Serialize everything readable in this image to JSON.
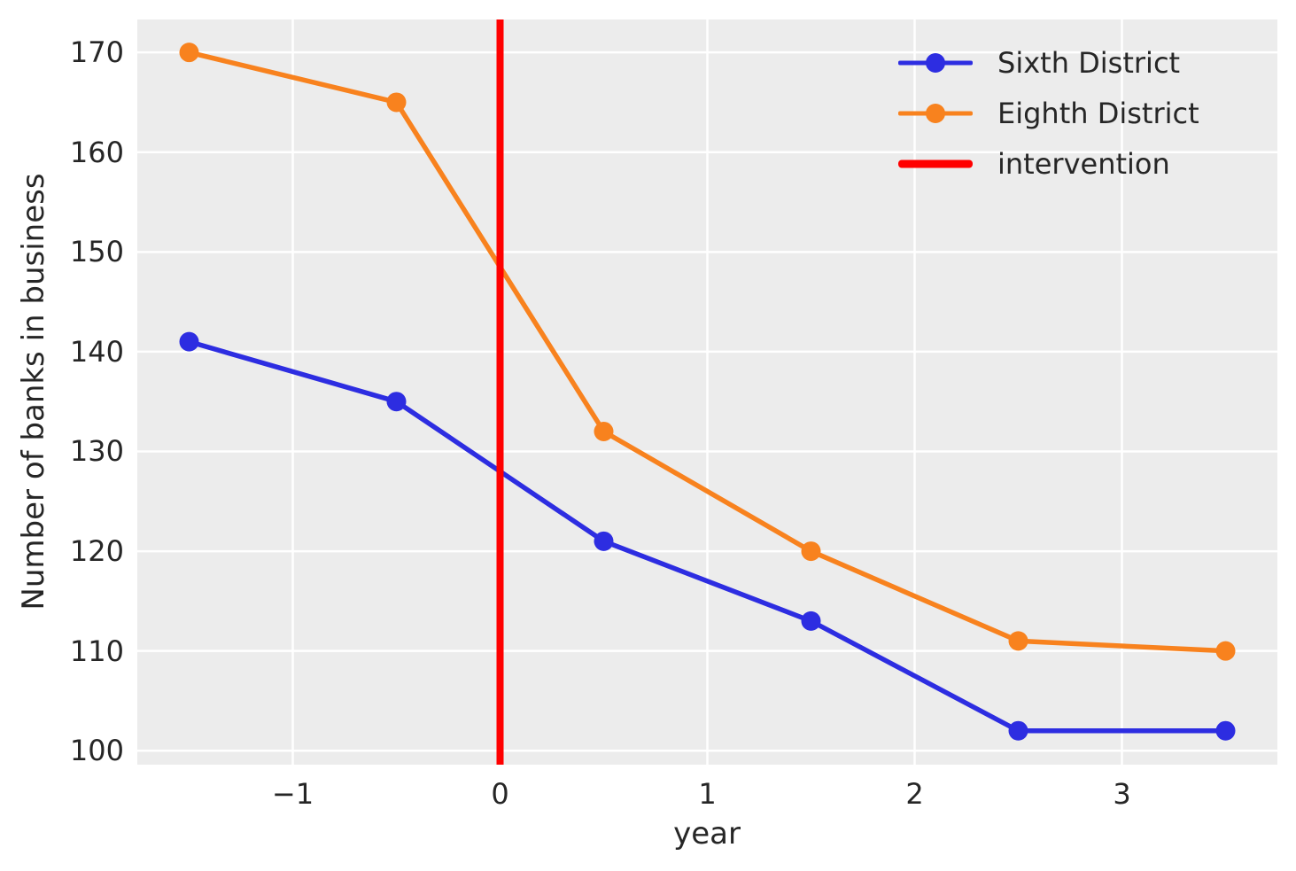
{
  "figure": {
    "background": "#ffffff",
    "plot_background": "#ececec",
    "grid_color": "#ffffff",
    "text_color": "#262626"
  },
  "chart_data": {
    "type": "line",
    "x": [
      -1.5,
      -0.5,
      0.5,
      1.5,
      2.5,
      3.5
    ],
    "series": [
      {
        "name": "Sixth District",
        "color": "#2d2de1",
        "marker": "circle",
        "values": [
          141,
          135,
          121,
          113,
          102,
          102
        ]
      },
      {
        "name": "Eighth District",
        "color": "#f8821e",
        "marker": "circle",
        "values": [
          170,
          165,
          132,
          120,
          111,
          110
        ]
      }
    ],
    "intervention": {
      "label": "intervention",
      "x": 0,
      "color": "#ff0000"
    },
    "title": "",
    "xlabel": "year",
    "ylabel": "Number of banks in business",
    "xticks": [
      -1,
      0,
      1,
      2,
      3
    ],
    "xtick_labels": [
      "−1",
      "0",
      "1",
      "2",
      "3"
    ],
    "yticks": [
      100,
      110,
      120,
      130,
      140,
      150,
      160,
      170
    ],
    "ytick_labels": [
      "100",
      "110",
      "120",
      "130",
      "140",
      "150",
      "160",
      "170"
    ],
    "xlim": [
      -1.75,
      3.75
    ],
    "ylim": [
      98.6,
      173.3
    ],
    "grid": true,
    "legend_position": "upper right"
  },
  "legend": {
    "entries": [
      {
        "label": "Sixth District",
        "type": "line-marker",
        "color": "#2d2de1"
      },
      {
        "label": "Eighth District",
        "type": "line-marker",
        "color": "#f8821e"
      },
      {
        "label": "intervention",
        "type": "thick-line",
        "color": "#ff0000"
      }
    ]
  }
}
